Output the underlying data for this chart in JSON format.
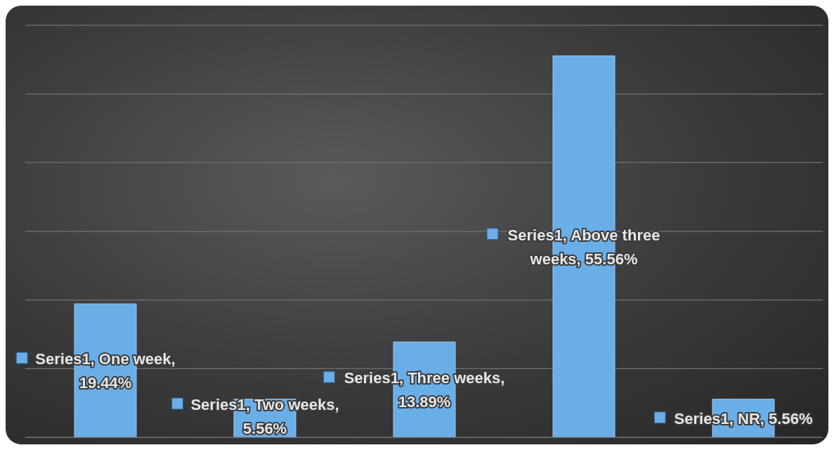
{
  "chart_data": {
    "type": "bar",
    "categories": [
      null,
      null,
      null,
      null,
      null
    ],
    "series": [
      {
        "color": "#6aaee8",
        "values": [
          19.44,
          5.56,
          13.89,
          55.56,
          5.56
        ],
        "value_labels": [
          "Series1, One week, 19.44%",
          "Series1, Two weeks, 5.56%",
          "Series1, Three weeks, 13.89%",
          "Series1, Above three weeks, 55.56%",
          "Series1, NR, 5.56%"
        ]
      }
    ],
    "ylim": [
      0,
      60
    ],
    "yticks": [
      0,
      10,
      20,
      30,
      40,
      50,
      60
    ],
    "grid": "y",
    "tick_labels": false,
    "legend": false
  }
}
